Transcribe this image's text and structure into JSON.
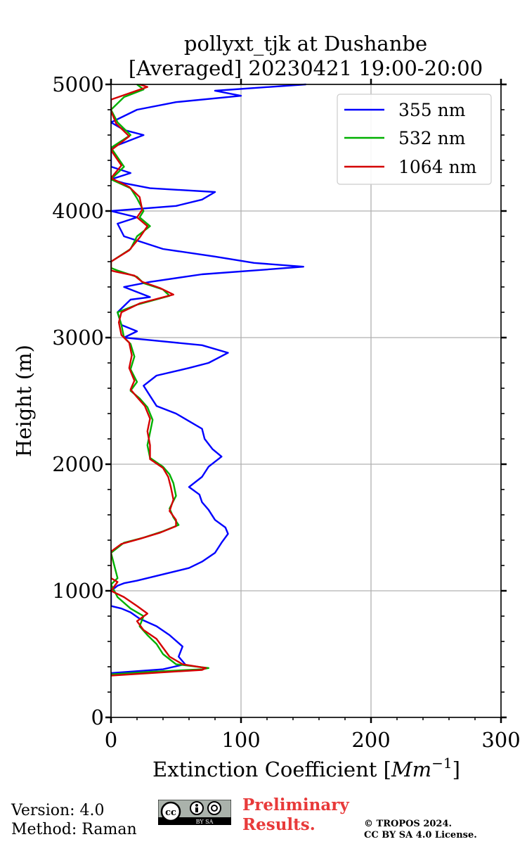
{
  "chart_data": {
    "type": "line",
    "title_line1": "pollyxt_tjk at Dushanbe",
    "title_line2": "[Averaged] 20230421 19:00-20:00",
    "xlabel": "Extinction Coefficient [",
    "xlabel_unit": "Mm",
    "xlabel_exp": "−1",
    "xlabel_close": "]",
    "ylabel": "Height (m)",
    "xlim": [
      0,
      300
    ],
    "ylim": [
      0,
      5000
    ],
    "x_ticks": [
      0,
      100,
      200,
      300
    ],
    "y_ticks": [
      0,
      1000,
      2000,
      3000,
      4000,
      5000
    ],
    "grid": true,
    "legend_position": "top-right",
    "series": [
      {
        "name": "355 nm",
        "color": "#0000ff",
        "points": [
          [
            0,
            350
          ],
          [
            40,
            380
          ],
          [
            57,
            420
          ],
          [
            52,
            480
          ],
          [
            55,
            560
          ],
          [
            45,
            650
          ],
          [
            35,
            720
          ],
          [
            22,
            780
          ],
          [
            15,
            830
          ],
          [
            8,
            860
          ],
          [
            0,
            880
          ],
          [
            0,
            1000
          ],
          [
            5,
            1040
          ],
          [
            10,
            1060
          ],
          [
            20,
            1080
          ],
          [
            40,
            1130
          ],
          [
            60,
            1180
          ],
          [
            70,
            1230
          ],
          [
            80,
            1300
          ],
          [
            85,
            1380
          ],
          [
            90,
            1450
          ],
          [
            88,
            1500
          ],
          [
            80,
            1560
          ],
          [
            75,
            1640
          ],
          [
            70,
            1700
          ],
          [
            68,
            1760
          ],
          [
            60,
            1820
          ],
          [
            70,
            1900
          ],
          [
            75,
            1980
          ],
          [
            85,
            2060
          ],
          [
            78,
            2120
          ],
          [
            72,
            2200
          ],
          [
            70,
            2280
          ],
          [
            60,
            2340
          ],
          [
            50,
            2400
          ],
          [
            35,
            2460
          ],
          [
            30,
            2540
          ],
          [
            25,
            2620
          ],
          [
            35,
            2700
          ],
          [
            60,
            2760
          ],
          [
            75,
            2800
          ],
          [
            90,
            2880
          ],
          [
            70,
            2940
          ],
          [
            30,
            2980
          ],
          [
            10,
            3000
          ],
          [
            20,
            3050
          ],
          [
            8,
            3100
          ],
          [
            5,
            3200
          ],
          [
            15,
            3300
          ],
          [
            30,
            3320
          ],
          [
            10,
            3400
          ],
          [
            30,
            3440
          ],
          [
            70,
            3500
          ],
          [
            110,
            3530
          ],
          [
            148,
            3560
          ],
          [
            110,
            3590
          ],
          [
            80,
            3640
          ],
          [
            40,
            3700
          ],
          [
            25,
            3750
          ],
          [
            10,
            3800
          ],
          [
            5,
            3900
          ],
          [
            20,
            3950
          ],
          [
            0,
            4000
          ],
          [
            50,
            4040
          ],
          [
            70,
            4090
          ],
          [
            80,
            4150
          ],
          [
            30,
            4180
          ],
          [
            10,
            4220
          ],
          [
            0,
            4250
          ],
          [
            15,
            4300
          ],
          [
            0,
            4350
          ],
          [
            0,
            4500
          ],
          [
            25,
            4600
          ],
          [
            10,
            4640
          ],
          [
            0,
            4700
          ],
          [
            20,
            4800
          ],
          [
            50,
            4860
          ],
          [
            100,
            4910
          ],
          [
            80,
            4950
          ],
          [
            150,
            5000
          ]
        ]
      },
      {
        "name": "532 nm",
        "color": "#00b000",
        "points": [
          [
            0,
            340
          ],
          [
            30,
            360
          ],
          [
            70,
            380
          ],
          [
            75,
            390
          ],
          [
            50,
            420
          ],
          [
            40,
            500
          ],
          [
            35,
            580
          ],
          [
            28,
            650
          ],
          [
            22,
            720
          ],
          [
            25,
            800
          ],
          [
            15,
            860
          ],
          [
            5,
            950
          ],
          [
            0,
            1050
          ],
          [
            5,
            1100
          ],
          [
            0,
            1300
          ],
          [
            10,
            1380
          ],
          [
            25,
            1420
          ],
          [
            40,
            1470
          ],
          [
            52,
            1520
          ],
          [
            48,
            1580
          ],
          [
            45,
            1650
          ],
          [
            50,
            1750
          ],
          [
            48,
            1850
          ],
          [
            45,
            1920
          ],
          [
            40,
            1980
          ],
          [
            30,
            2050
          ],
          [
            28,
            2150
          ],
          [
            30,
            2250
          ],
          [
            32,
            2350
          ],
          [
            28,
            2450
          ],
          [
            22,
            2520
          ],
          [
            15,
            2580
          ],
          [
            20,
            2650
          ],
          [
            15,
            2750
          ],
          [
            18,
            2850
          ],
          [
            15,
            2950
          ],
          [
            10,
            3000
          ],
          [
            8,
            3100
          ],
          [
            5,
            3200
          ],
          [
            20,
            3260
          ],
          [
            45,
            3330
          ],
          [
            40,
            3380
          ],
          [
            25,
            3430
          ],
          [
            20,
            3480
          ],
          [
            5,
            3530
          ],
          [
            0,
            3550
          ],
          [
            0,
            3600
          ],
          [
            15,
            3700
          ],
          [
            20,
            3800
          ],
          [
            30,
            3880
          ],
          [
            22,
            3950
          ],
          [
            25,
            4000
          ],
          [
            20,
            4100
          ],
          [
            15,
            4180
          ],
          [
            0,
            4250
          ],
          [
            10,
            4350
          ],
          [
            0,
            4500
          ],
          [
            15,
            4600
          ],
          [
            5,
            4700
          ],
          [
            0,
            4800
          ],
          [
            10,
            4900
          ],
          [
            25,
            4960
          ],
          [
            20,
            5000
          ]
        ]
      },
      {
        "name": "1064 nm",
        "color": "#d40000",
        "points": [
          [
            0,
            330
          ],
          [
            30,
            350
          ],
          [
            70,
            375
          ],
          [
            73,
            390
          ],
          [
            55,
            420
          ],
          [
            45,
            480
          ],
          [
            40,
            550
          ],
          [
            35,
            620
          ],
          [
            25,
            690
          ],
          [
            20,
            760
          ],
          [
            28,
            820
          ],
          [
            20,
            880
          ],
          [
            10,
            950
          ],
          [
            0,
            1000
          ],
          [
            5,
            1070
          ],
          [
            0,
            1100
          ],
          [
            0,
            1310
          ],
          [
            8,
            1370
          ],
          [
            22,
            1410
          ],
          [
            38,
            1460
          ],
          [
            50,
            1510
          ],
          [
            50,
            1560
          ],
          [
            45,
            1630
          ],
          [
            48,
            1720
          ],
          [
            46,
            1820
          ],
          [
            44,
            1900
          ],
          [
            40,
            1970
          ],
          [
            30,
            2040
          ],
          [
            30,
            2150
          ],
          [
            28,
            2260
          ],
          [
            30,
            2360
          ],
          [
            26,
            2460
          ],
          [
            20,
            2530
          ],
          [
            15,
            2590
          ],
          [
            18,
            2660
          ],
          [
            14,
            2760
          ],
          [
            16,
            2860
          ],
          [
            14,
            2960
          ],
          [
            8,
            3020
          ],
          [
            6,
            3120
          ],
          [
            8,
            3200
          ],
          [
            22,
            3270
          ],
          [
            48,
            3340
          ],
          [
            38,
            3390
          ],
          [
            24,
            3440
          ],
          [
            18,
            3490
          ],
          [
            4,
            3520
          ],
          [
            0,
            3530
          ],
          [
            0,
            3600
          ],
          [
            14,
            3690
          ],
          [
            22,
            3790
          ],
          [
            28,
            3880
          ],
          [
            20,
            3950
          ],
          [
            24,
            4010
          ],
          [
            22,
            4110
          ],
          [
            14,
            4190
          ],
          [
            0,
            4260
          ],
          [
            8,
            4360
          ],
          [
            0,
            4480
          ],
          [
            14,
            4590
          ],
          [
            4,
            4690
          ],
          [
            0,
            4790
          ],
          [
            0,
            4880
          ],
          [
            14,
            4930
          ],
          [
            28,
            4980
          ],
          [
            22,
            5000
          ]
        ]
      }
    ]
  },
  "footer": {
    "version": "Version: 4.0",
    "method": "Method: Raman",
    "preliminary_line1": "Preliminary",
    "preliminary_line2": "Results.",
    "copyright_line1": "© TROPOS 2024.",
    "copyright_line2": "CC BY SA 4.0 License.",
    "license_badge_text": "BY SA",
    "license_badge_cc": "cc"
  }
}
